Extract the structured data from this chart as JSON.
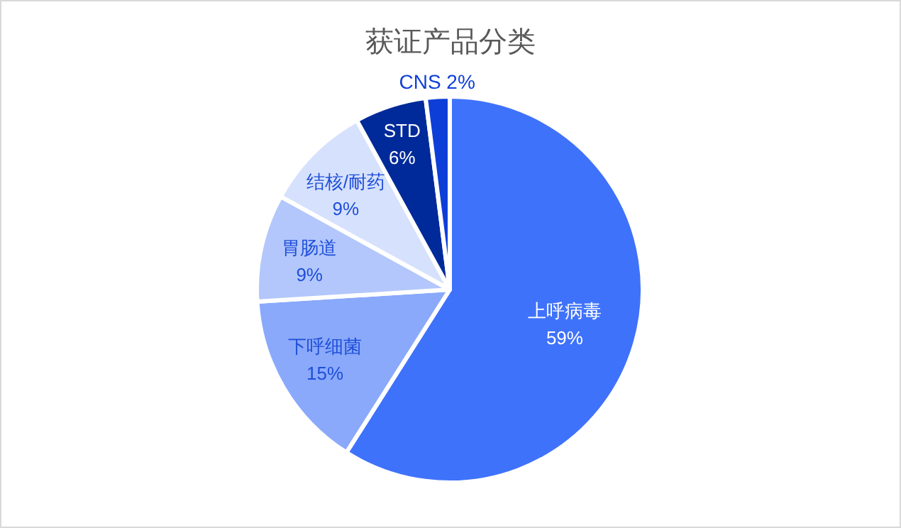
{
  "chart_data": {
    "type": "pie",
    "title": "获证产品分类",
    "categories": [
      "上呼病毒",
      "下呼细菌",
      "胃肠道",
      "结核/耐药",
      "STD",
      "CNS"
    ],
    "values": [
      59,
      15,
      9,
      9,
      6,
      2
    ],
    "colors": [
      "#3f72fb",
      "#8aa9fb",
      "#b3c7fc",
      "#d6e1fd",
      "#002a9a",
      "#0d3fd8"
    ],
    "value_labels": [
      "59%",
      "15%",
      "9%",
      "9%",
      "6%",
      "2%"
    ]
  }
}
